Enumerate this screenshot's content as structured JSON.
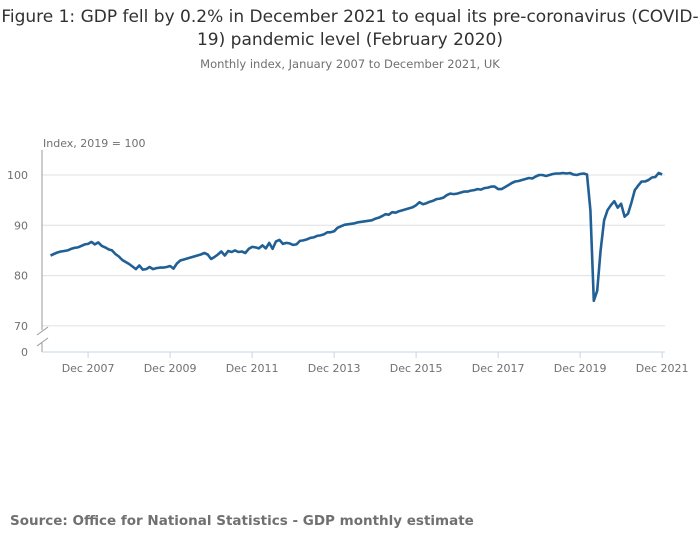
{
  "title": "Figure 1: GDP fell by 0.2% in December 2021 to equal its pre-coronavirus (COVID-19) pandemic level (February 2020)",
  "subtitle": "Monthly index, January 2007 to December 2021, UK",
  "source": "Source: Office for National Statistics - GDP monthly estimate",
  "chart_data": {
    "type": "line",
    "title": "Figure 1: GDP fell by 0.2% in December 2021 to equal its pre-coronavirus (COVID-19) pandemic level (February 2020)",
    "subtitle": "Monthly index, January 2007 to December 2021, UK",
    "ylabel": "Index, 2019 = 100",
    "xlabel": "",
    "x_start": "Jan 2007",
    "x_end": "Dec 2021",
    "x_frequency": "monthly",
    "x_tick_labels": [
      "Dec 2007",
      "Dec 2009",
      "Dec 2011",
      "Dec 2013",
      "Dec 2015",
      "Dec 2017",
      "Dec 2019",
      "Dec 2021"
    ],
    "y_tick_labels": [
      "0",
      "70",
      "80",
      "90",
      "100"
    ],
    "ylim": [
      70,
      105
    ],
    "y_axis_break": true,
    "grid": true,
    "line_color": "#206095",
    "values": [
      84.0,
      84.3,
      84.6,
      84.8,
      84.9,
      85.0,
      85.3,
      85.5,
      85.6,
      85.9,
      86.2,
      86.3,
      86.7,
      86.2,
      86.6,
      85.9,
      85.6,
      85.2,
      85.0,
      84.3,
      83.8,
      83.1,
      82.7,
      82.3,
      81.8,
      81.3,
      82.0,
      81.2,
      81.3,
      81.7,
      81.3,
      81.5,
      81.6,
      81.6,
      81.7,
      81.9,
      81.4,
      82.4,
      83.0,
      83.2,
      83.4,
      83.6,
      83.8,
      84.0,
      84.2,
      84.5,
      84.2,
      83.3,
      83.7,
      84.2,
      84.8,
      84.0,
      84.9,
      84.7,
      85.0,
      84.7,
      84.8,
      84.5,
      85.3,
      85.7,
      85.6,
      85.4,
      86.0,
      85.4,
      86.5,
      85.3,
      86.8,
      87.1,
      86.3,
      86.5,
      86.4,
      86.1,
      86.2,
      86.9,
      87.0,
      87.2,
      87.5,
      87.6,
      87.9,
      88.0,
      88.2,
      88.6,
      88.6,
      88.8,
      89.5,
      89.8,
      90.1,
      90.2,
      90.3,
      90.4,
      90.6,
      90.7,
      90.8,
      90.9,
      91.0,
      91.3,
      91.5,
      91.8,
      92.2,
      92.1,
      92.6,
      92.5,
      92.8,
      93.0,
      93.2,
      93.4,
      93.6,
      94.0,
      94.6,
      94.2,
      94.4,
      94.7,
      94.9,
      95.2,
      95.3,
      95.5,
      96.0,
      96.3,
      96.2,
      96.3,
      96.5,
      96.7,
      96.7,
      96.9,
      97.0,
      97.2,
      97.1,
      97.4,
      97.5,
      97.7,
      97.7,
      97.2,
      97.2,
      97.6,
      98.0,
      98.4,
      98.7,
      98.8,
      99.0,
      99.2,
      99.4,
      99.3,
      99.7,
      100.0,
      100.0,
      99.8,
      100.0,
      100.2,
      100.3,
      100.3,
      100.4,
      100.3,
      100.4,
      100.1,
      100.0,
      100.2,
      100.3,
      100.1,
      93.0,
      75.0,
      77.0,
      85.0,
      91.0,
      93.0,
      94.0,
      94.8,
      93.5,
      94.3,
      91.7,
      92.3,
      94.5,
      97.0,
      97.9,
      98.7,
      98.7,
      99.0,
      99.5,
      99.6,
      100.4,
      100.1
    ]
  }
}
